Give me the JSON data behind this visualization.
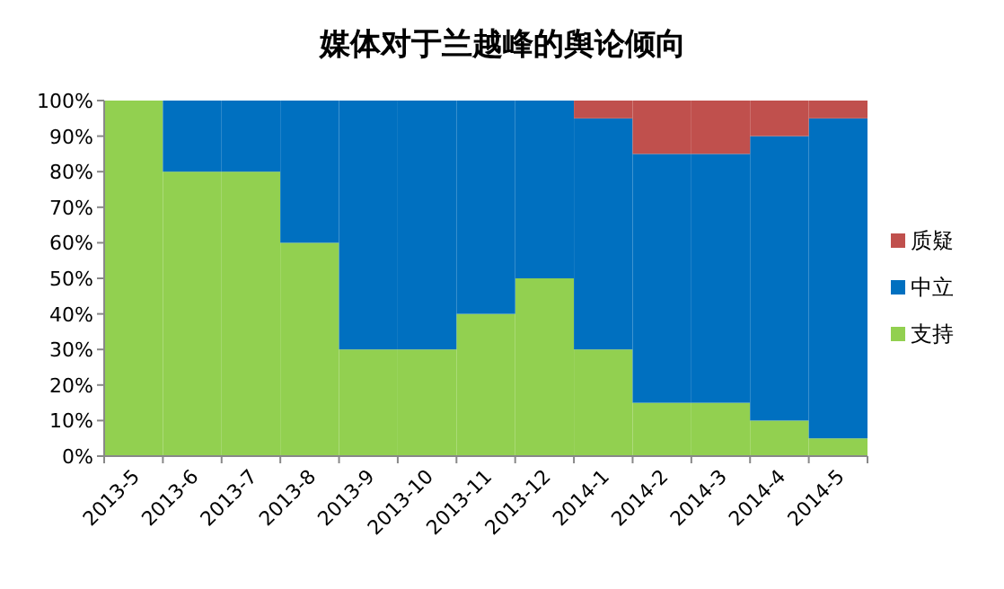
{
  "chart_data": {
    "type": "bar",
    "stacked": true,
    "title": "媒体对于兰越峰的舆论倾向",
    "categories": [
      "2013-5",
      "2013-6",
      "2013-7",
      "2013-8",
      "2013-9",
      "2013-10",
      "2013-11",
      "2013-12",
      "2014-1",
      "2014-2",
      "2014-3",
      "2014-4",
      "2014-5"
    ],
    "series": [
      {
        "name": "支持",
        "color": "#92d050",
        "values": [
          100,
          80,
          80,
          60,
          30,
          30,
          40,
          50,
          30,
          15,
          15,
          10,
          5
        ]
      },
      {
        "name": "中立",
        "color": "#0070c0",
        "values": [
          0,
          20,
          20,
          40,
          70,
          70,
          60,
          50,
          65,
          70,
          70,
          80,
          90
        ]
      },
      {
        "name": "质疑",
        "color": "#c0504d",
        "values": [
          0,
          0,
          0,
          0,
          0,
          0,
          0,
          0,
          5,
          15,
          15,
          10,
          5
        ]
      }
    ],
    "ylim": [
      0,
      100
    ],
    "yticks": [
      {
        "value": 0,
        "label": "0%"
      },
      {
        "value": 10,
        "label": "10%"
      },
      {
        "value": 20,
        "label": "20%"
      },
      {
        "value": 30,
        "label": "30%"
      },
      {
        "value": 40,
        "label": "40%"
      },
      {
        "value": 50,
        "label": "50%"
      },
      {
        "value": 60,
        "label": "60%"
      },
      {
        "value": 70,
        "label": "70%"
      },
      {
        "value": 80,
        "label": "80%"
      },
      {
        "value": 90,
        "label": "90%"
      },
      {
        "value": 100,
        "label": "100%"
      }
    ],
    "grid": false,
    "legend": "right"
  }
}
